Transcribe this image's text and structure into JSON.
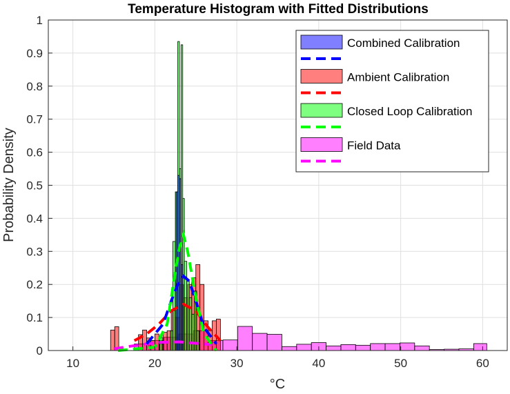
{
  "chart_data": {
    "type": "bar",
    "title": "Temperature Histogram with Fitted Distributions",
    "xlabel": "°C",
    "ylabel": "Probability Density",
    "xlim": [
      7,
      63
    ],
    "ylim": [
      0,
      1
    ],
    "xticks": [
      10,
      20,
      30,
      40,
      50,
      60
    ],
    "yticks": [
      0,
      0.1,
      0.2,
      0.3,
      0.4,
      0.5,
      0.6,
      0.7,
      0.8,
      0.9,
      1
    ],
    "ytick_labels": [
      "0",
      "0.1",
      "0.2",
      "0.3",
      "0.4",
      "0.5",
      "0.6",
      "0.7",
      "0.8",
      "0.9",
      "1"
    ],
    "grid": true,
    "legend_position": "top-right",
    "series": [
      {
        "name": "Field Data",
        "kind": "histogram",
        "color": "#ff00ff",
        "bins": [
          {
            "x0": 17.5,
            "x1": 19.3,
            "y": 0.02
          },
          {
            "x0": 19.3,
            "x1": 21.1,
            "y": 0.03
          },
          {
            "x0": 21.1,
            "x1": 22.9,
            "y": 0.04
          },
          {
            "x0": 22.9,
            "x1": 24.7,
            "y": 0.05
          },
          {
            "x0": 24.7,
            "x1": 26.5,
            "y": 0.06
          },
          {
            "x0": 26.5,
            "x1": 28.3,
            "y": 0.03
          },
          {
            "x0": 28.3,
            "x1": 30.1,
            "y": 0.032
          },
          {
            "x0": 30.1,
            "x1": 31.9,
            "y": 0.073
          },
          {
            "x0": 31.9,
            "x1": 33.7,
            "y": 0.052
          },
          {
            "x0": 33.7,
            "x1": 35.5,
            "y": 0.049
          },
          {
            "x0": 35.5,
            "x1": 37.3,
            "y": 0.012
          },
          {
            "x0": 37.3,
            "x1": 39.1,
            "y": 0.019
          },
          {
            "x0": 39.1,
            "x1": 40.9,
            "y": 0.024
          },
          {
            "x0": 40.9,
            "x1": 42.7,
            "y": 0.014
          },
          {
            "x0": 42.7,
            "x1": 44.5,
            "y": 0.018
          },
          {
            "x0": 44.5,
            "x1": 46.3,
            "y": 0.016
          },
          {
            "x0": 46.3,
            "x1": 48.1,
            "y": 0.021
          },
          {
            "x0": 48.1,
            "x1": 49.9,
            "y": 0.021
          },
          {
            "x0": 49.9,
            "x1": 51.7,
            "y": 0.023
          },
          {
            "x0": 51.7,
            "x1": 53.5,
            "y": 0.014
          },
          {
            "x0": 53.5,
            "x1": 55.3,
            "y": 0.003
          },
          {
            "x0": 55.3,
            "x1": 57.1,
            "y": 0.004
          },
          {
            "x0": 57.1,
            "x1": 58.9,
            "y": 0.005
          },
          {
            "x0": 58.9,
            "x1": 60.5,
            "y": 0.021
          }
        ],
        "fit": {
          "x": [
            15,
            17,
            19,
            21,
            23,
            25,
            27
          ],
          "y": [
            0.005,
            0.013,
            0.02,
            0.025,
            0.026,
            0.022,
            0.018
          ]
        }
      },
      {
        "name": "Ambient Calibration",
        "kind": "histogram",
        "color": "#ff0000",
        "bins": [
          {
            "x0": 14.6,
            "x1": 15.1,
            "y": 0.062
          },
          {
            "x0": 15.1,
            "x1": 15.6,
            "y": 0.072
          },
          {
            "x0": 18.0,
            "x1": 18.5,
            "y": 0.048
          },
          {
            "x0": 18.5,
            "x1": 19.0,
            "y": 0.062
          },
          {
            "x0": 19.0,
            "x1": 19.5,
            "y": 0.038
          },
          {
            "x0": 19.5,
            "x1": 20.0,
            "y": 0.03
          },
          {
            "x0": 20.0,
            "x1": 20.5,
            "y": 0.05
          },
          {
            "x0": 20.5,
            "x1": 21.0,
            "y": 0.02
          },
          {
            "x0": 21.0,
            "x1": 21.5,
            "y": 0.055
          },
          {
            "x0": 21.5,
            "x1": 22.0,
            "y": 0.06
          },
          {
            "x0": 22.0,
            "x1": 22.5,
            "y": 0.12
          },
          {
            "x0": 22.5,
            "x1": 23.0,
            "y": 0.1
          },
          {
            "x0": 23.0,
            "x1": 23.5,
            "y": 0.2
          },
          {
            "x0": 23.5,
            "x1": 24.0,
            "y": 0.16
          },
          {
            "x0": 24.0,
            "x1": 24.5,
            "y": 0.2
          },
          {
            "x0": 24.5,
            "x1": 25.0,
            "y": 0.22
          },
          {
            "x0": 25.0,
            "x1": 25.5,
            "y": 0.26
          },
          {
            "x0": 25.5,
            "x1": 26.0,
            "y": 0.2
          },
          {
            "x0": 26.0,
            "x1": 26.5,
            "y": 0.09
          },
          {
            "x0": 26.5,
            "x1": 27.0,
            "y": 0.06
          },
          {
            "x0": 27.0,
            "x1": 27.5,
            "y": 0.09
          },
          {
            "x0": 27.5,
            "x1": 28.0,
            "y": 0.095
          }
        ],
        "fit": {
          "x": [
            17.5,
            19,
            20.5,
            22,
            23.5,
            25,
            26.5,
            28
          ],
          "y": [
            0.03,
            0.05,
            0.08,
            0.12,
            0.14,
            0.12,
            0.07,
            0.03
          ]
        }
      },
      {
        "name": "Closed Loop Calibration",
        "kind": "histogram",
        "color": "#00ff00",
        "bins": [
          {
            "x0": 20.6,
            "x1": 20.9,
            "y": 0.04
          },
          {
            "x0": 21.9,
            "x1": 22.2,
            "y": 0.06
          },
          {
            "x0": 22.2,
            "x1": 22.5,
            "y": 0.33
          },
          {
            "x0": 22.5,
            "x1": 22.8,
            "y": 0.48
          },
          {
            "x0": 22.8,
            "x1": 23.0,
            "y": 0.935
          },
          {
            "x0": 23.0,
            "x1": 23.2,
            "y": 0.55
          },
          {
            "x0": 23.2,
            "x1": 23.4,
            "y": 0.925
          },
          {
            "x0": 23.4,
            "x1": 23.6,
            "y": 0.46
          },
          {
            "x0": 23.6,
            "x1": 23.9,
            "y": 0.27
          },
          {
            "x0": 23.9,
            "x1": 24.2,
            "y": 0.21
          },
          {
            "x0": 24.2,
            "x1": 24.5,
            "y": 0.16
          },
          {
            "x0": 24.5,
            "x1": 24.8,
            "y": 0.11
          },
          {
            "x0": 24.8,
            "x1": 25.1,
            "y": 0.18
          },
          {
            "x0": 25.1,
            "x1": 25.4,
            "y": 0.06
          }
        ],
        "fit": {
          "x": [
            15.5,
            20,
            21.5,
            22.5,
            23,
            23.5,
            24,
            25,
            26,
            27.5
          ],
          "y": [
            0,
            0.01,
            0.08,
            0.24,
            0.31,
            0.35,
            0.3,
            0.16,
            0.05,
            0
          ]
        }
      },
      {
        "name": "Combined Calibration",
        "kind": "histogram",
        "color": "#0000ff",
        "bins": [
          {
            "x0": 22.6,
            "x1": 22.8,
            "y": 0.48
          },
          {
            "x0": 22.8,
            "x1": 23.0,
            "y": 0.53
          },
          {
            "x0": 23.0,
            "x1": 23.2,
            "y": 0.52
          },
          {
            "x0": 23.2,
            "x1": 23.4,
            "y": 0.26
          }
        ],
        "fit": {
          "x": [
            19,
            21,
            22,
            22.8,
            23.5,
            24.2,
            25,
            26,
            27.5
          ],
          "y": [
            0.02,
            0.08,
            0.15,
            0.2,
            0.225,
            0.21,
            0.15,
            0.07,
            0.02
          ]
        }
      }
    ],
    "legend": [
      {
        "name": "Combined Calibration",
        "color": "#0000ff"
      },
      {
        "name": "Ambient Calibration",
        "color": "#ff0000"
      },
      {
        "name": "Closed Loop Calibration",
        "color": "#00ff00"
      },
      {
        "name": "Field Data",
        "color": "#ff00ff"
      }
    ]
  }
}
